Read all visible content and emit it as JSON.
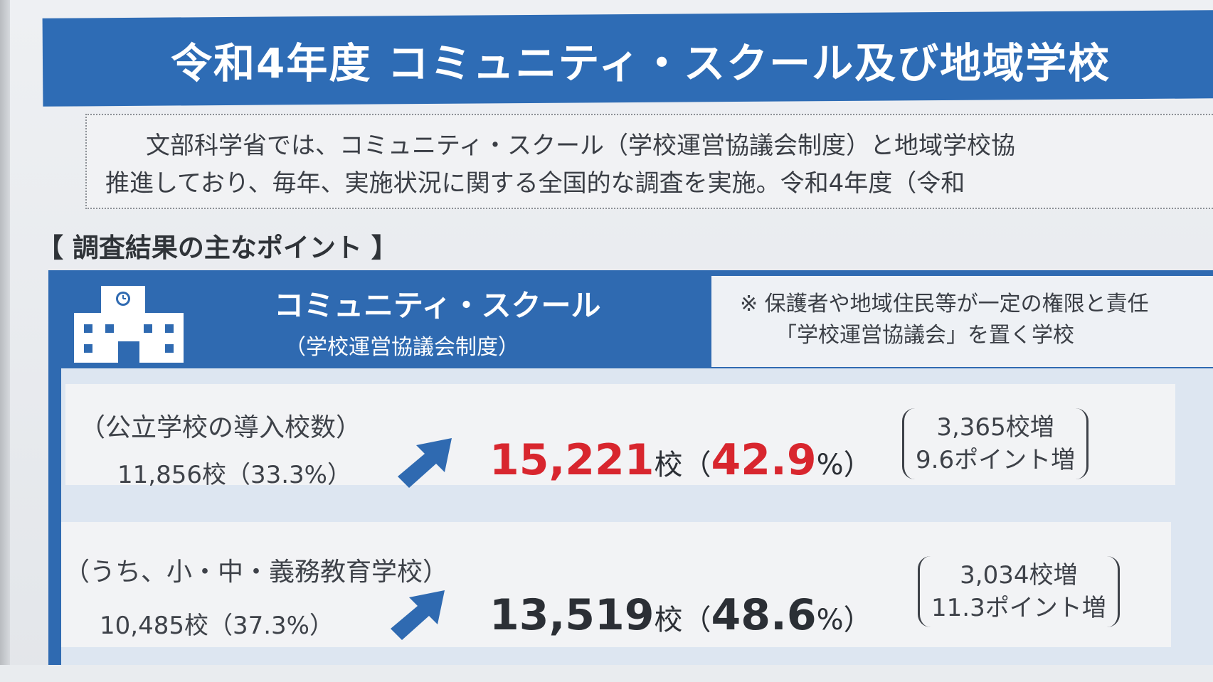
{
  "header": {
    "title": "令和4年度 コミュニティ・スクール及び地域学校"
  },
  "intro": {
    "line1": "文部科学省では、コミュニティ・スクール（学校運営協議会制度）と地域学校協",
    "line2": "推進しており、毎年、実施状況に関する全国的な調査を実施。令和4年度（令和"
  },
  "section": {
    "heading": "【 調査結果の主なポイント 】"
  },
  "community_school": {
    "title": "コミュニティ・スクール",
    "subtitle": "（学校運営協議会制度）",
    "icon": "school-building-icon",
    "note_line1": "※ 保護者や地域住民等が一定の権限と責任",
    "note_line2": "「学校運営協議会」を置く学校"
  },
  "rows": [
    {
      "label": "（公立学校の導入校数）",
      "previous": "11,856校（33.3%）",
      "value": "15,221",
      "value_unit": "校",
      "paren_open": "（",
      "percent": "42.9",
      "percent_unit": "%）",
      "increase_schools": "3,365校増",
      "increase_points": "9.6ポイント増"
    },
    {
      "label": "（うち、小・中・義務教育学校）",
      "previous": "10,485校（37.3%）",
      "value": "13,519",
      "value_unit": "校",
      "paren_open": "（",
      "percent": "48.6",
      "percent_unit": "%）",
      "increase_schools": "3,034校増",
      "increase_points": "11.3ポイント増"
    }
  ],
  "colors": {
    "brand_blue": "#2e6cb5",
    "highlight_red": "#d8262e"
  }
}
